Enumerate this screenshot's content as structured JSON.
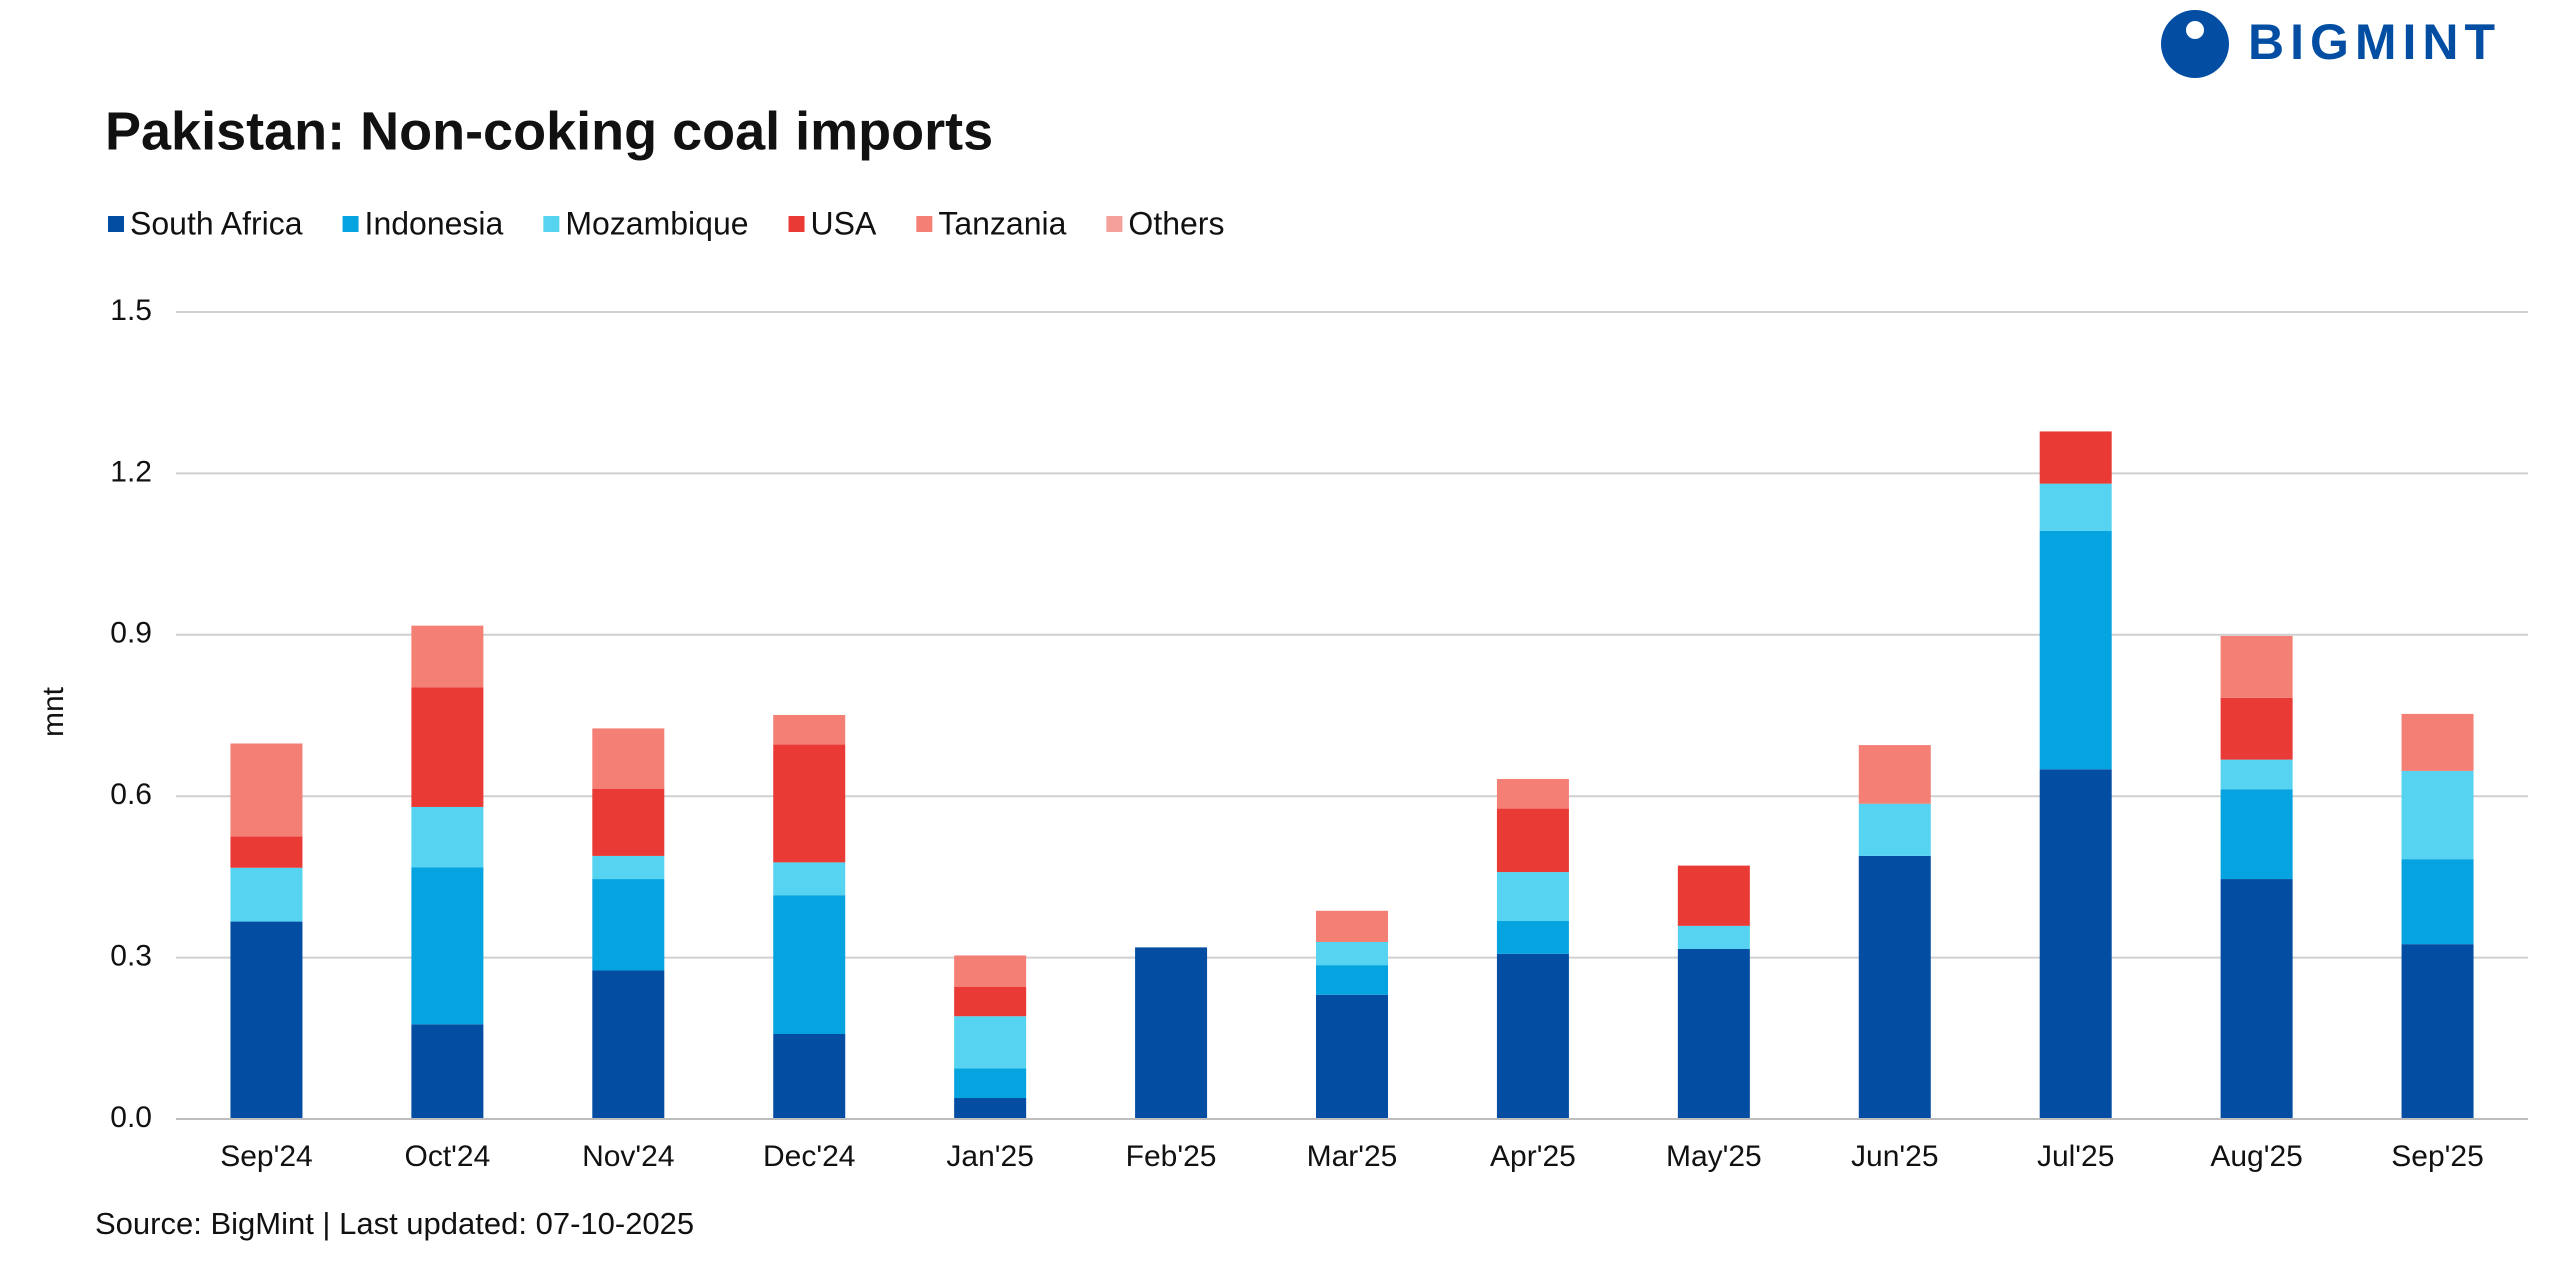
{
  "chart_data": {
    "type": "stacked_bar",
    "title": "Pakistan: Non-coking coal imports",
    "y_label": "mnt",
    "source": "Source: BigMint | Last updated: 07-10-2025",
    "logo": "BIGMINT",
    "categories": [
      "Sep'24",
      "Oct'24",
      "Nov'24",
      "Dec'24",
      "Jan'25",
      "Feb'25",
      "Mar'25",
      "Apr'25",
      "May'25",
      "Jun'25",
      "Jul'25",
      "Aug'25",
      "Sep'25"
    ],
    "series": [
      {
        "name": "South Africa",
        "color": "#034ea2",
        "values": [
          0.367,
          0.176,
          0.276,
          0.158,
          0.039,
          0.319,
          0.231,
          0.307,
          0.316,
          0.489,
          0.65,
          0.446,
          0.325
        ]
      },
      {
        "name": "Indonesia",
        "color": "#05a3e0",
        "values": [
          0,
          0.292,
          0.17,
          0.258,
          0.055,
          0,
          0.055,
          0.061,
          0,
          0,
          0.443,
          0.167,
          0.158
        ]
      },
      {
        "name": "Mozambique",
        "color": "#56d3f0",
        "values": [
          0.1,
          0.112,
          0.043,
          0.061,
          0.097,
          0,
          0.043,
          0.091,
          0.043,
          0.097,
          0.088,
          0.055,
          0.164
        ]
      },
      {
        "name": "USA",
        "color": "#e93a35",
        "values": [
          0.058,
          0.222,
          0.125,
          0.219,
          0.055,
          0,
          0,
          0.118,
          0.112,
          0,
          0.097,
          0.115,
          0
        ]
      },
      {
        "name": "Tanzania",
        "color": "#f47f74",
        "values": [
          0.173,
          0.115,
          0.112,
          0.055,
          0.058,
          0,
          0.058,
          0.055,
          0,
          0.109,
          0,
          0.115,
          0.106
        ]
      },
      {
        "name": "Others",
        "color": "#f4a09b",
        "values": [
          0,
          0,
          0,
          0,
          0,
          0,
          0,
          0,
          0,
          0,
          0,
          0,
          0
        ]
      }
    ],
    "ylim": [
      0,
      1.5
    ],
    "yticks": [
      {
        "value": 0,
        "label": "0.0"
      },
      0.3,
      0.6,
      0.9,
      1.2,
      1.5
    ],
    "grid": true
  }
}
